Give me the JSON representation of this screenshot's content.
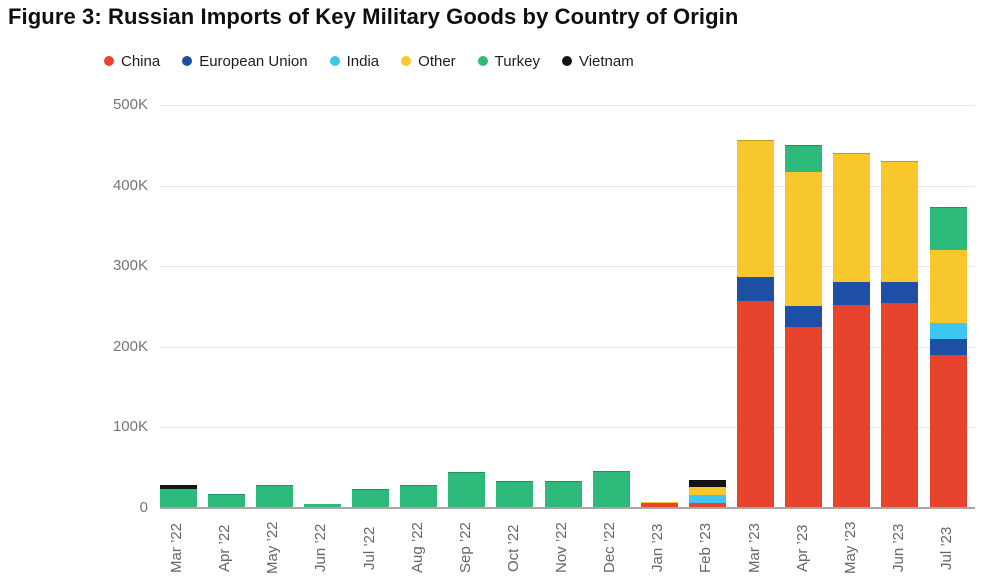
{
  "title": "Figure 3: Russian Imports of Key Military Goods by Country of Origin",
  "colors": {
    "background": "#ffffff",
    "title_text": "#0f0f0f",
    "legend_text": "#1d1d1d",
    "grid": "#e8e8e8",
    "axis": "#a6a6a6",
    "ytick_text": "#757575",
    "xtick_text": "#666666"
  },
  "chart_data": {
    "type": "bar",
    "stacked": true,
    "grid": true,
    "legend_position": "top",
    "title": "Figure 3: Russian Imports of Key Military Goods by Country of Origin",
    "xlabel": "",
    "ylabel": "",
    "unit": "thousands",
    "ylim": [
      0,
      500
    ],
    "yticks": [
      {
        "label": "0",
        "value": 0
      },
      {
        "label": "100K",
        "value": 100
      },
      {
        "label": "200K",
        "value": 200
      },
      {
        "label": "300K",
        "value": 300
      },
      {
        "label": "400K",
        "value": 400
      },
      {
        "label": "500K",
        "value": 500
      }
    ],
    "categories": [
      "Mar ’22",
      "Apr ’22",
      "May ’22",
      "Jun ’22",
      "Jul ’22",
      "Aug ’22",
      "Sep ’22",
      "Oct ’22",
      "Nov ’22",
      "Dec ’22",
      "Jan ’23",
      "Feb ’23",
      "Mar ’23",
      "Apr ’23",
      "May ’23",
      "Jun ’23",
      "Jul ’23"
    ],
    "series": [
      {
        "name": "China",
        "color": "#e8432d",
        "values": [
          0,
          0,
          0,
          0,
          0,
          0,
          0,
          0,
          0,
          0,
          6,
          6,
          257,
          225,
          252,
          254,
          190
        ]
      },
      {
        "name": "European Union",
        "color": "#1d50a5",
        "values": [
          0,
          0,
          0,
          0,
          0,
          0,
          0,
          0,
          0,
          0,
          0,
          0,
          30,
          26,
          29,
          26,
          20
        ]
      },
      {
        "name": "India",
        "color": "#3ec6f0",
        "values": [
          0,
          0,
          0,
          0,
          0,
          0,
          0,
          0,
          0,
          0,
          0,
          10,
          0,
          0,
          0,
          0,
          19
        ]
      },
      {
        "name": "Other",
        "color": "#f8c72c",
        "values": [
          1,
          0,
          0,
          0,
          0,
          0,
          0,
          0,
          0,
          0,
          1,
          10,
          169,
          166,
          159,
          150,
          91
        ]
      },
      {
        "name": "Turkey",
        "color": "#2eba7a",
        "values": [
          23,
          17,
          29,
          5,
          24,
          29,
          45,
          34,
          34,
          46,
          1,
          0,
          0,
          33,
          0,
          0,
          53
        ]
      },
      {
        "name": "Vietnam",
        "color": "#141414",
        "values": [
          4,
          0,
          0,
          0,
          0,
          0,
          0,
          0,
          0,
          0,
          0,
          9,
          0,
          0,
          0,
          0,
          0
        ]
      }
    ],
    "totals": [
      28,
      17,
      29,
      5,
      24,
      29,
      45,
      34,
      34,
      46,
      8,
      35,
      456,
      450,
      440,
      430,
      373
    ]
  }
}
